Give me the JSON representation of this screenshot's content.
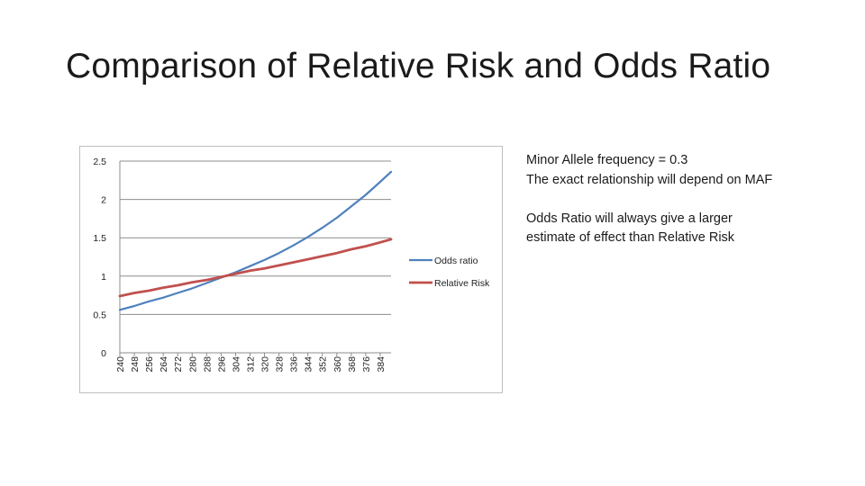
{
  "slide": {
    "title": "Comparison of Relative Risk and Odds Ratio",
    "notes": [
      "Minor Allele frequency = 0.3",
      "The exact relationship will depend on MAF",
      "",
      "Odds Ratio will always give a larger",
      "estimate of effect than Relative Risk"
    ]
  },
  "chart_data": {
    "type": "line",
    "title": "",
    "xlabel": "",
    "ylabel": "",
    "ylim": [
      0,
      2.5
    ],
    "y_ticks": [
      0,
      0.5,
      1,
      1.5,
      2,
      2.5
    ],
    "y_tick_labels": [
      "0",
      "0.5",
      "1",
      "1.5",
      "2",
      "2.5"
    ],
    "grid": true,
    "legend_position": "right",
    "x_tick_labels": [
      "240",
      "248",
      "256",
      "264",
      "272",
      "280",
      "288",
      "296",
      "304",
      "312",
      "320",
      "328",
      "336",
      "344",
      "352",
      "360",
      "368",
      "376",
      "384"
    ],
    "x": [
      240,
      248,
      256,
      264,
      272,
      280,
      288,
      296,
      304,
      312,
      320,
      328,
      336,
      344,
      352,
      360,
      368,
      376,
      384,
      390
    ],
    "series": [
      {
        "name": "Odds ratio",
        "color": "#4f81bd",
        "values": [
          0.56,
          0.61,
          0.67,
          0.72,
          0.78,
          0.84,
          0.91,
          0.98,
          1.05,
          1.13,
          1.21,
          1.3,
          1.4,
          1.51,
          1.63,
          1.76,
          1.91,
          2.06,
          2.23,
          2.36
        ]
      },
      {
        "name": "Relative Risk",
        "color": "#c0504d",
        "values": [
          0.74,
          0.78,
          0.81,
          0.85,
          0.88,
          0.92,
          0.95,
          0.99,
          1.03,
          1.07,
          1.1,
          1.14,
          1.18,
          1.22,
          1.26,
          1.3,
          1.35,
          1.39,
          1.44,
          1.48
        ]
      }
    ]
  }
}
